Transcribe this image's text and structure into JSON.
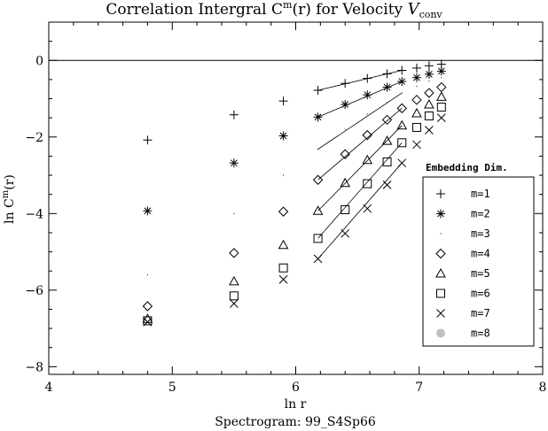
{
  "chart_data": {
    "type": "scatter",
    "title": {
      "main": "Correlation Intergral C",
      "main_sup": "m",
      "main_tail": "(r) for Velocity ",
      "var": "V",
      "var_sub": "conv"
    },
    "xlabel": "ln r",
    "ylabel": {
      "main": "ln C",
      "sup": "m",
      "tail": "(r)"
    },
    "footer": "Spectrogram: 99_S4Sp66",
    "xlim": [
      4,
      8
    ],
    "ylim": [
      -8.2,
      1.0
    ],
    "x_ticks": [
      4,
      5,
      6,
      7,
      8
    ],
    "x_tick_labels": [
      "4",
      "5",
      "6",
      "7",
      "8"
    ],
    "y_ticks": [
      0,
      -2,
      -4,
      -6,
      -8
    ],
    "y_tick_labels": [
      "0",
      "−2",
      "−4",
      "−6",
      "−8"
    ],
    "x_minor_step": 0.2,
    "y_minor_step": 0.5,
    "reference_line_y": 0,
    "legend": {
      "title": "Embedding Dim.",
      "placement": "right"
    },
    "x": [
      4.8,
      5.5,
      5.9,
      6.18,
      6.4,
      6.58,
      6.74,
      6.86,
      6.98,
      7.08,
      7.18
    ],
    "series": [
      {
        "name": "m=1",
        "marker": "plus",
        "values": [
          -2.08,
          -1.42,
          -1.06,
          -0.78,
          -0.6,
          -0.47,
          -0.35,
          -0.26,
          -0.2,
          -0.14,
          -0.1
        ]
      },
      {
        "name": "m=2",
        "marker": "asterisk",
        "values": [
          -3.93,
          -2.68,
          -1.97,
          -1.48,
          -1.15,
          -0.9,
          -0.7,
          -0.55,
          -0.45,
          -0.36,
          -0.28
        ]
      },
      {
        "name": "m=3",
        "marker": "dot",
        "values": [
          -5.6,
          -4.0,
          -3.0,
          -2.32,
          -1.8,
          -1.4,
          -1.1,
          -0.85,
          -0.68,
          -0.54,
          -0.45
        ]
      },
      {
        "name": "m=4",
        "marker": "diamond",
        "values": [
          -6.42,
          -5.03,
          -3.95,
          -3.12,
          -2.45,
          -1.95,
          -1.55,
          -1.25,
          -1.03,
          -0.85,
          -0.7
        ]
      },
      {
        "name": "m=5",
        "marker": "triangle",
        "values": [
          -6.75,
          -5.77,
          -4.82,
          -3.93,
          -3.2,
          -2.6,
          -2.1,
          -1.7,
          -1.38,
          -1.15,
          -0.95
        ]
      },
      {
        "name": "m=6",
        "marker": "square",
        "values": [
          -6.8,
          -6.15,
          -5.42,
          -4.65,
          -3.9,
          -3.22,
          -2.65,
          -2.15,
          -1.75,
          -1.45,
          -1.22
        ]
      },
      {
        "name": "m=7",
        "marker": "cross",
        "values": [
          -6.83,
          -6.35,
          -5.72,
          -5.18,
          -4.52,
          -3.87,
          -3.25,
          -2.68,
          -2.2,
          -1.82,
          -1.5
        ]
      },
      {
        "name": "m=8",
        "marker": "filled-circle",
        "color": "#c0c0c0",
        "values": []
      }
    ],
    "fit_lines": [
      {
        "series": "m=1",
        "x": [
          6.18,
          6.86
        ],
        "y": [
          -0.78,
          -0.26
        ]
      },
      {
        "series": "m=2",
        "x": [
          6.18,
          6.86
        ],
        "y": [
          -1.48,
          -0.55
        ]
      },
      {
        "series": "m=3",
        "x": [
          6.18,
          6.86
        ],
        "y": [
          -2.32,
          -0.85
        ]
      },
      {
        "series": "m=4",
        "x": [
          6.18,
          6.86
        ],
        "y": [
          -3.12,
          -1.25
        ]
      },
      {
        "series": "m=5",
        "x": [
          6.18,
          6.86
        ],
        "y": [
          -3.93,
          -1.7
        ]
      },
      {
        "series": "m=6",
        "x": [
          6.18,
          6.86
        ],
        "y": [
          -4.65,
          -2.15
        ]
      },
      {
        "series": "m=7",
        "x": [
          6.18,
          6.86
        ],
        "y": [
          -5.18,
          -2.68
        ]
      }
    ]
  }
}
